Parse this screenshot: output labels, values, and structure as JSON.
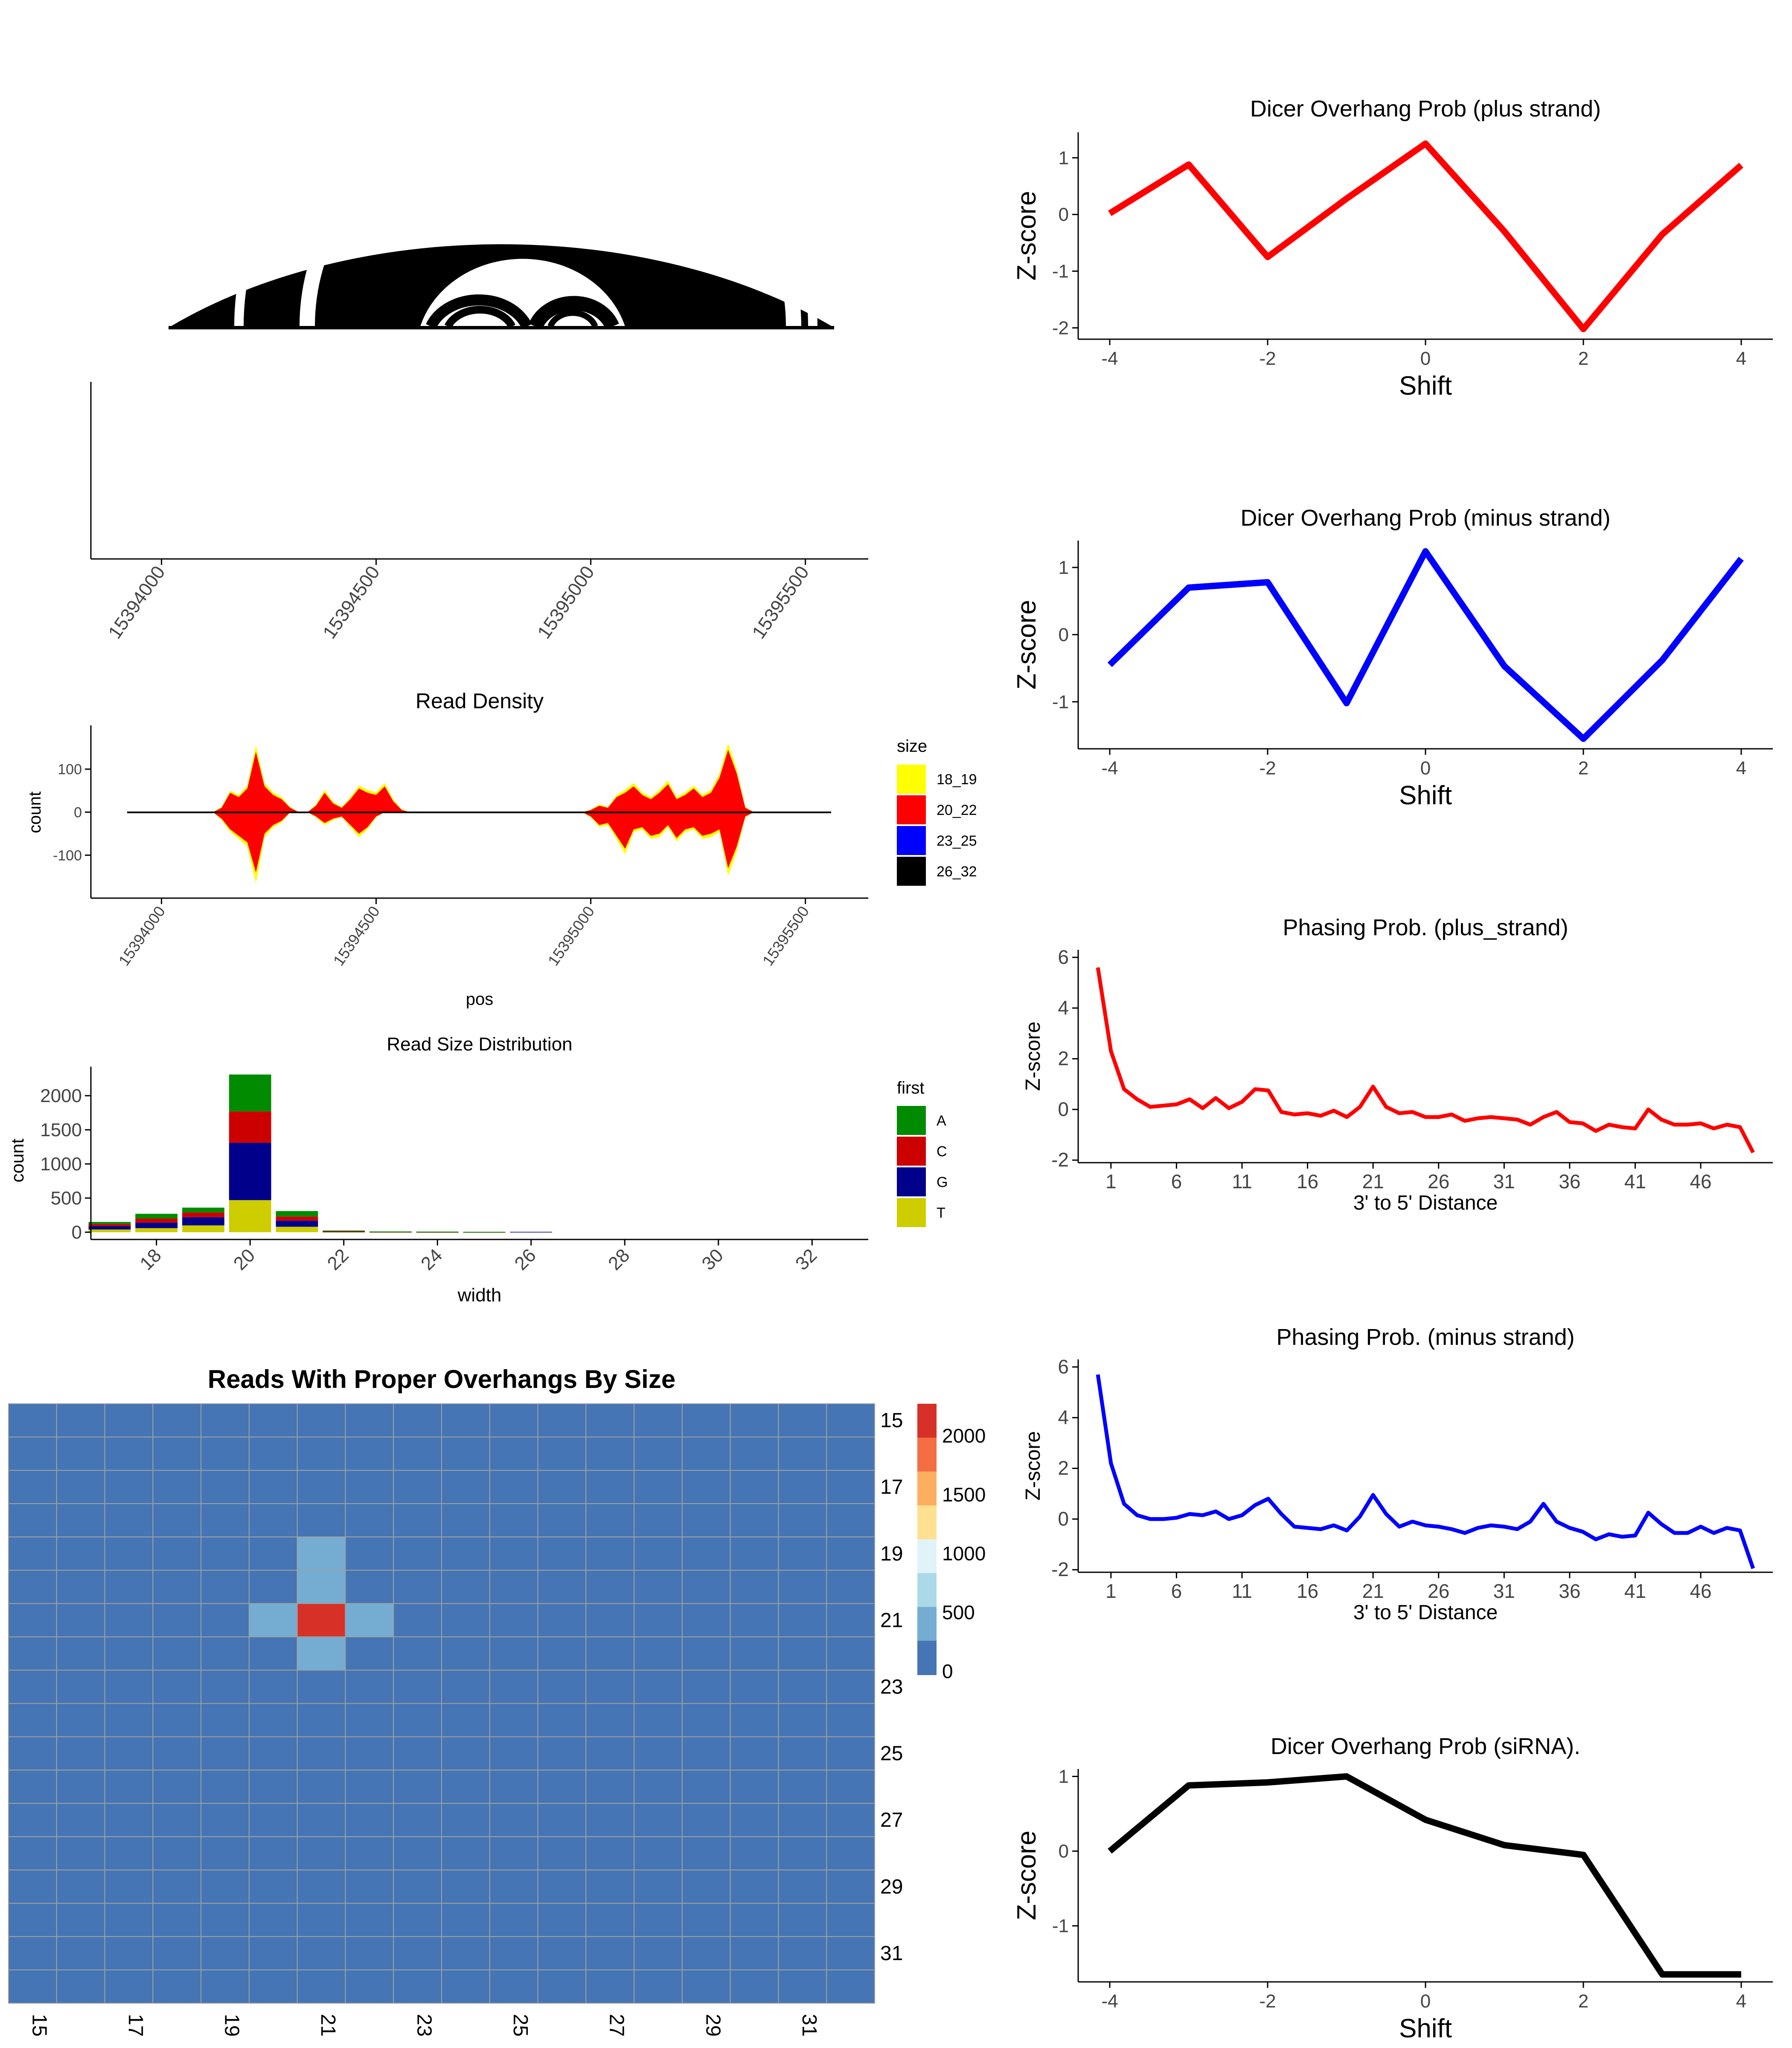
{
  "chart_data": [
    {
      "id": "arc",
      "type": "other",
      "description_free": true,
      "title": ""
    },
    {
      "id": "coverage",
      "type": "area",
      "title": "",
      "xticks": [
        15394000,
        15394500,
        15395000,
        15395500
      ],
      "xlim": [
        15393920,
        15395560
      ]
    },
    {
      "id": "read_density",
      "type": "area",
      "title": "Read Density",
      "xlabel": "pos",
      "ylabel": "count",
      "xticks": [
        15394000,
        15394500,
        15395000,
        15395500
      ],
      "yticks": [
        -100,
        0,
        100
      ],
      "xlim": [
        15393920,
        15395560
      ],
      "ylim": [
        -180,
        180
      ],
      "legend": {
        "title": "size",
        "position": "right",
        "entries": [
          {
            "name": "18_19",
            "color": "#FFFF00"
          },
          {
            "name": "20_22",
            "color": "#FF0000"
          },
          {
            "name": "23_25",
            "color": "#0000FF"
          },
          {
            "name": "26_32",
            "color": "#000000"
          }
        ]
      },
      "series": [
        {
          "name": "20_22",
          "color": "#FF0000",
          "x": [
            15394100,
            15394120,
            15394140,
            15394160,
            15394180,
            15394200,
            15394220,
            15394240,
            15394260,
            15394280,
            15394300,
            15394320,
            15394340,
            15394360,
            15394380,
            15394400,
            15394420,
            15394440,
            15394460,
            15394480,
            15394500,
            15394520,
            15394540,
            15394560,
            15394580,
            15394600,
            15394620,
            15394640,
            15394660,
            15394680,
            15394700,
            15394720,
            15394740,
            15394760,
            15394780,
            15394800,
            15394820,
            15394840,
            15394860,
            15394880,
            15394900,
            15394920,
            15394940,
            15394960,
            15394980,
            15395000,
            15395020,
            15395040,
            15395060,
            15395080,
            15395100,
            15395120,
            15395140,
            15395160,
            15395180,
            15395200,
            15395220,
            15395240,
            15395260,
            15395280,
            15395300,
            15395320,
            15395340,
            15395360,
            15395380,
            15395400
          ],
          "upper": [
            0,
            0,
            10,
            45,
            35,
            55,
            140,
            60,
            40,
            30,
            10,
            0,
            0,
            15,
            45,
            20,
            10,
            30,
            55,
            45,
            40,
            60,
            25,
            5,
            0,
            0,
            0,
            0,
            0,
            0,
            0,
            0,
            0,
            0,
            0,
            0,
            0,
            0,
            0,
            0,
            0,
            0,
            0,
            0,
            0,
            5,
            15,
            10,
            35,
            45,
            60,
            40,
            30,
            45,
            65,
            30,
            40,
            55,
            35,
            45,
            80,
            145,
            90,
            10,
            0,
            0
          ],
          "lower": [
            0,
            0,
            -15,
            -40,
            -55,
            -70,
            -140,
            -50,
            -30,
            -20,
            0,
            0,
            0,
            -10,
            -25,
            -15,
            -10,
            -30,
            -50,
            -35,
            -10,
            0,
            0,
            0,
            0,
            0,
            0,
            0,
            0,
            0,
            0,
            0,
            0,
            0,
            0,
            0,
            0,
            0,
            0,
            0,
            0,
            0,
            0,
            0,
            0,
            -10,
            -30,
            -25,
            -55,
            -85,
            -40,
            -35,
            -55,
            -50,
            -30,
            -60,
            -40,
            -35,
            -55,
            -50,
            -40,
            -130,
            -80,
            -10,
            0,
            0
          ]
        },
        {
          "name": "18_19",
          "color": "#FFFF00",
          "x": [
            15394100,
            15394120,
            15394140,
            15394160,
            15394180,
            15394200,
            15394220,
            15394240,
            15394260,
            15394280,
            15394300,
            15394320,
            15394340,
            15394360,
            15394380,
            15394400,
            15394420,
            15394440,
            15394460,
            15394480,
            15394500,
            15394520,
            15394540,
            15394560,
            15394580,
            15394600,
            15394620,
            15394640,
            15394660,
            15394680,
            15394700,
            15394720,
            15394740,
            15394760,
            15394780,
            15394800,
            15394820,
            15394840,
            15394860,
            15394880,
            15394900,
            15394920,
            15394940,
            15394960,
            15394980,
            15395000,
            15395020,
            15395040,
            15395060,
            15395080,
            15395100,
            15395120,
            15395140,
            15395160,
            15395180,
            15395200,
            15395220,
            15395240,
            15395260,
            15395280,
            15395300,
            15395320,
            15395340,
            15395360,
            15395380,
            15395400
          ],
          "upper": [
            0,
            0,
            12,
            50,
            40,
            62,
            155,
            68,
            46,
            35,
            12,
            0,
            0,
            18,
            52,
            24,
            12,
            35,
            62,
            52,
            46,
            68,
            30,
            6,
            0,
            0,
            0,
            0,
            0,
            0,
            0,
            0,
            0,
            0,
            0,
            0,
            0,
            0,
            0,
            0,
            0,
            0,
            0,
            0,
            0,
            6,
            18,
            12,
            40,
            52,
            68,
            46,
            35,
            52,
            74,
            35,
            46,
            62,
            40,
            52,
            90,
            160,
            100,
            12,
            0,
            0
          ],
          "lower": [
            0,
            0,
            -18,
            -46,
            -62,
            -80,
            -165,
            -58,
            -35,
            -24,
            0,
            0,
            0,
            -12,
            -30,
            -18,
            -12,
            -35,
            -58,
            -40,
            -12,
            0,
            0,
            0,
            0,
            0,
            0,
            0,
            0,
            0,
            0,
            0,
            0,
            0,
            0,
            0,
            0,
            0,
            0,
            0,
            0,
            0,
            0,
            0,
            0,
            -12,
            -35,
            -30,
            -62,
            -98,
            -46,
            -40,
            -62,
            -58,
            -35,
            -68,
            -46,
            -40,
            -62,
            -58,
            -46,
            -148,
            -92,
            -12,
            0,
            0
          ]
        }
      ]
    },
    {
      "id": "read_size",
      "type": "bar",
      "title": "Read Size Distribution",
      "xlabel": "width",
      "ylabel": "count",
      "xticks": [
        18,
        20,
        22,
        24,
        26,
        28,
        30,
        32
      ],
      "yticks": [
        0,
        500,
        1000,
        1500,
        2000
      ],
      "ylim": [
        0,
        2350
      ],
      "xlim": [
        16.6,
        33.2
      ],
      "legend": {
        "title": "first",
        "position": "right",
        "entries": [
          {
            "name": "A",
            "color": "#008B00"
          },
          {
            "name": "C",
            "color": "#CD0000"
          },
          {
            "name": "G",
            "color": "#00008B"
          },
          {
            "name": "T",
            "color": "#CDCD00"
          }
        ]
      },
      "categories": [
        17,
        18,
        19,
        20,
        21,
        22,
        23,
        24,
        25,
        26
      ],
      "series": [
        {
          "name": "T",
          "color": "#CDCD00",
          "values": [
            40,
            60,
            100,
            470,
            80,
            5,
            3,
            2,
            2,
            0
          ]
        },
        {
          "name": "G",
          "color": "#00008B",
          "values": [
            50,
            80,
            120,
            840,
            90,
            5,
            3,
            2,
            2,
            6
          ]
        },
        {
          "name": "C",
          "color": "#CD0000",
          "values": [
            30,
            60,
            70,
            460,
            60,
            5,
            2,
            2,
            1,
            0
          ]
        },
        {
          "name": "A",
          "color": "#008B00",
          "values": [
            30,
            70,
            70,
            540,
            80,
            10,
            3,
            3,
            1,
            0
          ]
        }
      ]
    },
    {
      "id": "overhang_heatmap",
      "type": "heatmap",
      "title": "Reads With Proper Overhangs By Size",
      "xticks": [
        "15",
        "17",
        "19",
        "21",
        "23",
        "25",
        "27",
        "29",
        "31"
      ],
      "yticks": [
        "15",
        "17",
        "19",
        "21",
        "23",
        "25",
        "27",
        "29",
        "31"
      ],
      "rows": 18,
      "cols": 18,
      "row_start": 15,
      "col_start": 15,
      "legend": {
        "position": "right",
        "ticks": [
          0,
          500,
          1000,
          1500,
          2000
        ],
        "colors": [
          "#4575B4",
          "#74ADD1",
          "#ABD9E9",
          "#E0F3F8",
          "#FEE090",
          "#FDAE61",
          "#F46D43",
          "#D73027"
        ]
      },
      "cells": [
        {
          "row": 19,
          "col": 21,
          "value": 450
        },
        {
          "row": 20,
          "col": 21,
          "value": 450
        },
        {
          "row": 21,
          "col": 19,
          "value": 250
        },
        {
          "row": 21,
          "col": 20,
          "value": 450
        },
        {
          "row": 21,
          "col": 21,
          "value": 2150
        },
        {
          "row": 21,
          "col": 22,
          "value": 450
        },
        {
          "row": 22,
          "col": 21,
          "value": 450
        }
      ],
      "base_value": 0
    },
    {
      "id": "dicer_plus",
      "type": "line",
      "title": "Dicer Overhang Prob (plus strand)",
      "xlabel": "Shift",
      "ylabel": "Z-score",
      "xticks": [
        -4,
        -2,
        0,
        2,
        4
      ],
      "yticks": [
        -2,
        -1,
        0,
        1
      ],
      "xlim": [
        -4.4,
        4.4
      ],
      "ylim": [
        -2.2,
        1.45
      ],
      "series": [
        {
          "color": "#FF0000",
          "x": [
            -4,
            -3,
            -2,
            -1,
            0,
            1,
            2,
            3,
            4
          ],
          "y": [
            0.02,
            0.88,
            -0.75,
            0.28,
            1.25,
            -0.3,
            -2.02,
            -0.35,
            0.87
          ]
        }
      ]
    },
    {
      "id": "dicer_minus",
      "type": "line",
      "title": "Dicer Overhang Prob (minus strand)",
      "xlabel": "Shift",
      "ylabel": "Z-score",
      "xticks": [
        -4,
        -2,
        0,
        2,
        4
      ],
      "yticks": [
        -1,
        0,
        1
      ],
      "xlim": [
        -4.4,
        4.4
      ],
      "ylim": [
        -1.7,
        1.4
      ],
      "series": [
        {
          "color": "#0000FF",
          "x": [
            -4,
            -3,
            -2,
            -1,
            0,
            1,
            2,
            3,
            4
          ],
          "y": [
            -0.45,
            0.7,
            0.78,
            -1.02,
            1.24,
            -0.47,
            -1.55,
            -0.38,
            1.13
          ]
        }
      ]
    },
    {
      "id": "phasing_plus",
      "type": "line",
      "title": "Phasing Prob. (plus_strand)",
      "xlabel": "3' to 5' Distance",
      "ylabel": "Z-score",
      "xticks": [
        1,
        6,
        11,
        16,
        21,
        26,
        31,
        36,
        41,
        46
      ],
      "yticks": [
        -2,
        0,
        2,
        4,
        6
      ],
      "xlim": [
        -1.5,
        51.5
      ],
      "ylim": [
        -2.1,
        6.3
      ],
      "series": [
        {
          "color": "#FF0000",
          "x": [
            0,
            1,
            2,
            3,
            4,
            5,
            6,
            7,
            8,
            9,
            10,
            11,
            12,
            13,
            14,
            15,
            16,
            17,
            18,
            19,
            20,
            21,
            22,
            23,
            24,
            25,
            26,
            27,
            28,
            29,
            30,
            31,
            32,
            33,
            34,
            35,
            36,
            37,
            38,
            39,
            40,
            41,
            42,
            43,
            44,
            45,
            46,
            47,
            48,
            49,
            50
          ],
          "y": [
            5.6,
            2.3,
            0.8,
            0.4,
            0.1,
            0.15,
            0.2,
            0.4,
            0.05,
            0.45,
            0.05,
            0.3,
            0.8,
            0.75,
            -0.1,
            -0.2,
            -0.15,
            -0.25,
            -0.05,
            -0.3,
            0.1,
            0.9,
            0.1,
            -0.15,
            -0.1,
            -0.3,
            -0.3,
            -0.2,
            -0.45,
            -0.35,
            -0.3,
            -0.35,
            -0.4,
            -0.6,
            -0.3,
            -0.1,
            -0.5,
            -0.55,
            -0.85,
            -0.6,
            -0.7,
            -0.75,
            0.0,
            -0.4,
            -0.6,
            -0.6,
            -0.55,
            -0.75,
            -0.6,
            -0.7,
            -1.7
          ]
        }
      ]
    },
    {
      "id": "phasing_minus",
      "type": "line",
      "title": "Phasing Prob. (minus strand)",
      "xlabel": "3' to 5' Distance",
      "ylabel": "Z-score",
      "xticks": [
        1,
        6,
        11,
        16,
        21,
        26,
        31,
        36,
        41,
        46
      ],
      "yticks": [
        -2,
        0,
        2,
        4,
        6
      ],
      "xlim": [
        -1.5,
        51.5
      ],
      "ylim": [
        -2.1,
        6.3
      ],
      "series": [
        {
          "color": "#0000FF",
          "x": [
            0,
            1,
            2,
            3,
            4,
            5,
            6,
            7,
            8,
            9,
            10,
            11,
            12,
            13,
            14,
            15,
            16,
            17,
            18,
            19,
            20,
            21,
            22,
            23,
            24,
            25,
            26,
            27,
            28,
            29,
            30,
            31,
            32,
            33,
            34,
            35,
            36,
            37,
            38,
            39,
            40,
            41,
            42,
            43,
            44,
            45,
            46,
            47,
            48,
            49,
            50
          ],
          "y": [
            5.7,
            2.2,
            0.6,
            0.15,
            0.0,
            0.0,
            0.05,
            0.2,
            0.15,
            0.3,
            0.0,
            0.15,
            0.55,
            0.8,
            0.2,
            -0.3,
            -0.35,
            -0.4,
            -0.25,
            -0.45,
            0.1,
            0.95,
            0.2,
            -0.3,
            -0.1,
            -0.25,
            -0.3,
            -0.4,
            -0.55,
            -0.35,
            -0.25,
            -0.3,
            -0.4,
            -0.1,
            0.6,
            -0.1,
            -0.35,
            -0.5,
            -0.8,
            -0.6,
            -0.7,
            -0.65,
            0.25,
            -0.2,
            -0.55,
            -0.55,
            -0.3,
            -0.55,
            -0.35,
            -0.45,
            -1.95
          ]
        }
      ]
    },
    {
      "id": "dicer_sirna",
      "type": "line",
      "title": "Dicer Overhang Prob (siRNA).",
      "xlabel": "Shift",
      "ylabel": "Z-score",
      "xticks": [
        -4,
        -2,
        0,
        2,
        4
      ],
      "yticks": [
        -1,
        0,
        1
      ],
      "xlim": [
        -4.4,
        4.4
      ],
      "ylim": [
        -1.75,
        1.1
      ],
      "series": [
        {
          "color": "#000000",
          "x": [
            -4,
            -3,
            -2,
            -1,
            0,
            1,
            2,
            3,
            4
          ],
          "y": [
            0.0,
            0.88,
            0.92,
            1.0,
            0.42,
            0.08,
            -0.05,
            -1.65,
            -1.65
          ]
        }
      ]
    }
  ]
}
